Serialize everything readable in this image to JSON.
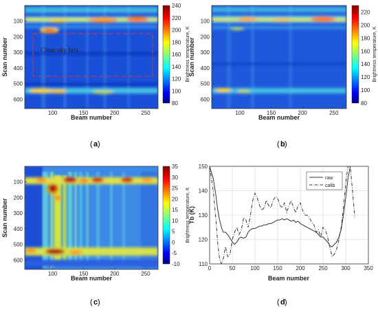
{
  "chart_data": [
    {
      "panel": "a",
      "type": "heatmap",
      "caption": "a",
      "xlabel": "Beam number",
      "ylabel": "Scan number",
      "x_ticks": [
        "100",
        "150",
        "200",
        "250"
      ],
      "y_ticks": [
        "100",
        "200",
        "300",
        "400",
        "500",
        "600"
      ],
      "xlim": [
        55,
        270
      ],
      "ylim": [
        0,
        660
      ],
      "colorbar": {
        "label": "Brightness temperature, K",
        "ticks": [
          "80",
          "100",
          "120",
          "140",
          "160",
          "180",
          "200",
          "220",
          "240"
        ],
        "min": 80,
        "max": 240
      },
      "annotation": {
        "text": "Clear sky box",
        "x_range": [
          62,
          262
        ],
        "y_range": [
          200,
          480
        ]
      }
    },
    {
      "panel": "b",
      "type": "heatmap",
      "caption": "b",
      "xlabel": "Beam number",
      "ylabel": "Scan number",
      "x_ticks": [
        "100",
        "150",
        "200",
        "250"
      ],
      "y_ticks": [
        "100",
        "200",
        "300",
        "400",
        "500",
        "600"
      ],
      "xlim": [
        55,
        270
      ],
      "ylim": [
        0,
        660
      ],
      "colorbar": {
        "label": "Brightness temperature, K",
        "ticks": [
          "80",
          "100",
          "120",
          "140",
          "160",
          "180",
          "200",
          "220"
        ],
        "min": 80,
        "max": 230
      }
    },
    {
      "panel": "c",
      "type": "heatmap",
      "caption": "c",
      "xlabel": "Beam number",
      "ylabel": "Scan number",
      "x_ticks": [
        "100",
        "150",
        "200",
        "250"
      ],
      "y_ticks": [
        "100",
        "200",
        "300",
        "400",
        "500",
        "600"
      ],
      "xlim": [
        55,
        270
      ],
      "ylim": [
        0,
        660
      ],
      "colorbar": {
        "label": "Brightness temperature, K",
        "ticks": [
          "-10",
          "-5",
          "0",
          "5",
          "10",
          "15",
          "20",
          "25",
          "30",
          "35"
        ],
        "min": -10,
        "max": 35
      }
    },
    {
      "panel": "d",
      "type": "line",
      "caption": "d",
      "xlabel": "Beam number",
      "ylabel": "Tb (K)",
      "x_ticks": [
        "0",
        "50",
        "100",
        "150",
        "200",
        "250",
        "300",
        "350"
      ],
      "y_ticks": [
        "110",
        "120",
        "130",
        "140",
        "150"
      ],
      "xlim": [
        0,
        350
      ],
      "ylim": [
        110,
        150
      ],
      "grid": true,
      "legend_position": "top-right",
      "series": [
        {
          "name": "raw",
          "style": "solid",
          "x": [
            0,
            8,
            14,
            18,
            22,
            26,
            30,
            35,
            40,
            45,
            50,
            55,
            60,
            65,
            70,
            75,
            80,
            85,
            90,
            95,
            100,
            105,
            110,
            115,
            120,
            125,
            130,
            135,
            140,
            145,
            150,
            155,
            160,
            165,
            170,
            175,
            180,
            185,
            190,
            195,
            200,
            205,
            210,
            215,
            220,
            225,
            230,
            235,
            240,
            245,
            250,
            255,
            260,
            265,
            270,
            275,
            280,
            285,
            290,
            295,
            300,
            305,
            310
          ],
          "y": [
            150,
            145,
            138,
            132,
            128,
            125,
            123,
            123,
            122,
            120.5,
            119,
            118,
            119,
            120.5,
            121,
            120.5,
            121,
            123,
            124,
            124.5,
            124.5,
            125,
            125.5,
            125.5,
            126,
            126,
            126.5,
            126.5,
            127,
            127.5,
            128,
            128,
            128.5,
            128,
            128.5,
            128,
            127.5,
            128,
            127,
            127.5,
            126.5,
            126,
            125.5,
            125,
            124.5,
            124,
            123.5,
            123,
            122,
            121,
            121,
            120,
            119,
            117.5,
            117,
            118,
            119,
            121,
            124,
            130,
            137,
            145,
            150
          ]
        },
        {
          "name": "calib",
          "style": "dash-dot",
          "x": [
            0,
            8,
            14,
            18,
            22,
            26,
            30,
            35,
            40,
            45,
            50,
            55,
            60,
            65,
            70,
            75,
            80,
            85,
            90,
            95,
            100,
            105,
            110,
            115,
            120,
            125,
            130,
            135,
            140,
            145,
            150,
            155,
            160,
            165,
            170,
            175,
            180,
            185,
            190,
            195,
            200,
            205,
            210,
            215,
            220,
            225,
            230,
            235,
            240,
            245,
            250,
            255,
            260,
            265,
            270,
            275,
            280,
            285,
            290,
            295,
            300,
            305,
            310,
            315,
            320
          ],
          "y": [
            150,
            140,
            128,
            118,
            112,
            110,
            112,
            117,
            113,
            114,
            120,
            123,
            125,
            122,
            124,
            129,
            128,
            125,
            130,
            136,
            139,
            137,
            134,
            132,
            133,
            136,
            134,
            133,
            136,
            137.5,
            137,
            134,
            133,
            135,
            131,
            134,
            136,
            133,
            131,
            134,
            135,
            132,
            130,
            130,
            129,
            127,
            126,
            123,
            124,
            121,
            125,
            124,
            121,
            117,
            113,
            114,
            116,
            120,
            125,
            133,
            143,
            150,
            150,
            140,
            129
          ]
        }
      ]
    }
  ]
}
